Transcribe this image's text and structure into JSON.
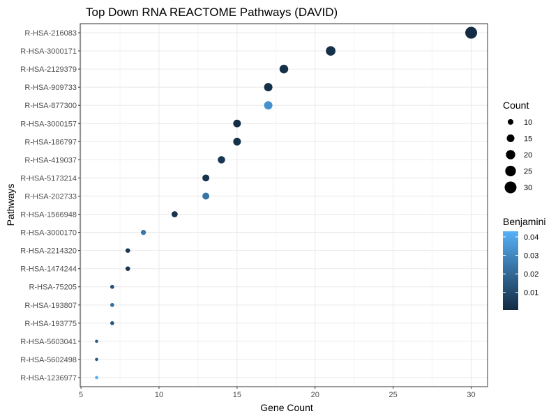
{
  "chart_data": {
    "type": "scatter",
    "title": "Top Down RNA REACTOME Pathways (DAVID)",
    "xlabel": "Gene Count",
    "ylabel": "Pathways",
    "xlim": [
      4.95,
      31.05
    ],
    "xticks": [
      5,
      10,
      15,
      20,
      25,
      30
    ],
    "grid": true,
    "points": [
      {
        "pathway": "R-HSA-216083",
        "count": 30,
        "benjamini": 0.0008
      },
      {
        "pathway": "R-HSA-3000171",
        "count": 21,
        "benjamini": 0.002
      },
      {
        "pathway": "R-HSA-2129379",
        "count": 18,
        "benjamini": 0.002
      },
      {
        "pathway": "R-HSA-909733",
        "count": 17,
        "benjamini": 0.002
      },
      {
        "pathway": "R-HSA-877300",
        "count": 17,
        "benjamini": 0.033
      },
      {
        "pathway": "R-HSA-3000157",
        "count": 15,
        "benjamini": 0.001
      },
      {
        "pathway": "R-HSA-186797",
        "count": 15,
        "benjamini": 0.002
      },
      {
        "pathway": "R-HSA-419037",
        "count": 14,
        "benjamini": 0.004
      },
      {
        "pathway": "R-HSA-5173214",
        "count": 13,
        "benjamini": 0.003
      },
      {
        "pathway": "R-HSA-202733",
        "count": 13,
        "benjamini": 0.024
      },
      {
        "pathway": "R-HSA-1566948",
        "count": 11,
        "benjamini": 0.003
      },
      {
        "pathway": "R-HSA-3000170",
        "count": 9,
        "benjamini": 0.025
      },
      {
        "pathway": "R-HSA-2214320",
        "count": 8,
        "benjamini": 0.004
      },
      {
        "pathway": "R-HSA-1474244",
        "count": 8,
        "benjamini": 0.004
      },
      {
        "pathway": "R-HSA-75205",
        "count": 7,
        "benjamini": 0.012
      },
      {
        "pathway": "R-HSA-193807",
        "count": 7,
        "benjamini": 0.022
      },
      {
        "pathway": "R-HSA-193775",
        "count": 7,
        "benjamini": 0.014
      },
      {
        "pathway": "R-HSA-5603041",
        "count": 6,
        "benjamini": 0.015
      },
      {
        "pathway": "R-HSA-5602498",
        "count": 6,
        "benjamini": 0.014
      },
      {
        "pathway": "R-HSA-1236977",
        "count": 6,
        "benjamini": 0.042
      }
    ],
    "legend": {
      "placement": "right",
      "size": {
        "title": "Count",
        "values": [
          10,
          15,
          20,
          25,
          30
        ]
      },
      "color": {
        "title": "Benjamini",
        "ticks": [
          0.04,
          0.03,
          0.02,
          0.01
        ],
        "tick_labels": [
          "0.04",
          "0.03",
          "0.02",
          "0.01"
        ],
        "range": [
          0.0005,
          0.043
        ],
        "low_color": "#132b43",
        "high_color": "#56b1f7"
      }
    },
    "colors": {
      "grid": "#ebebeb",
      "panel_border": "#333333",
      "tick_label": "#4d4d4d"
    }
  }
}
